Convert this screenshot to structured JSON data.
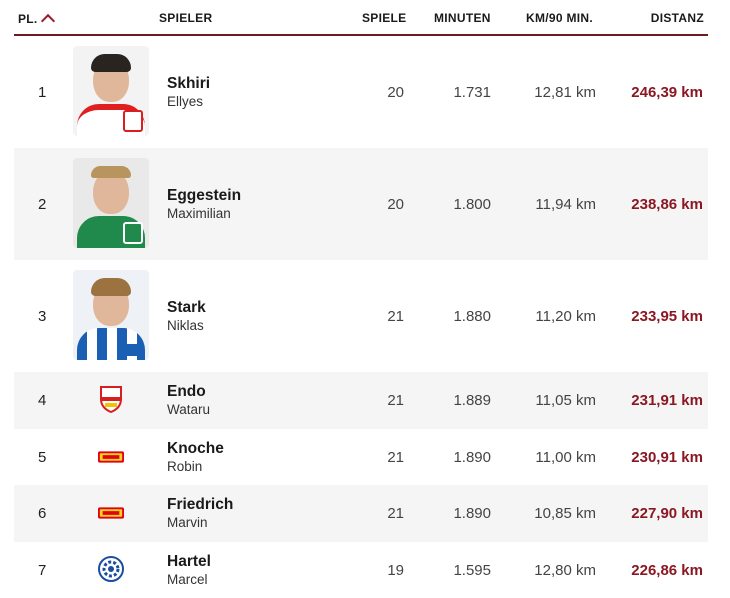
{
  "header": {
    "pl": "PL.",
    "spieler": "SPIELER",
    "spiele": "SPIELE",
    "minuten": "MINUTEN",
    "km90": "KM/90 MIN.",
    "distanz": "DISTANZ"
  },
  "rows": [
    {
      "rank": "1",
      "last": "Skhiri",
      "first": "Ellyes",
      "spiele": "20",
      "minuten": "1.731",
      "km90": "12,81 km",
      "distanz": "246,39 km",
      "club": "koeln-crest-icon"
    },
    {
      "rank": "2",
      "last": "Eggestein",
      "first": "Maximilian",
      "spiele": "20",
      "minuten": "1.800",
      "km90": "11,94 km",
      "distanz": "238,86 km",
      "club": "werder-crest-icon"
    },
    {
      "rank": "3",
      "last": "Stark",
      "first": "Niklas",
      "spiele": "21",
      "minuten": "1.880",
      "km90": "11,20 km",
      "distanz": "233,95 km",
      "club": "hertha-crest-icon"
    },
    {
      "rank": "4",
      "last": "Endo",
      "first": "Wataru",
      "spiele": "21",
      "minuten": "1.889",
      "km90": "11,05 km",
      "distanz": "231,91 km",
      "club": "vfb-crest-icon"
    },
    {
      "rank": "5",
      "last": "Knoche",
      "first": "Robin",
      "spiele": "21",
      "minuten": "1.890",
      "km90": "11,00 km",
      "distanz": "230,91 km",
      "club": "union-crest-icon"
    },
    {
      "rank": "6",
      "last": "Friedrich",
      "first": "Marvin",
      "spiele": "21",
      "minuten": "1.890",
      "km90": "10,85 km",
      "distanz": "227,90 km",
      "club": "union-crest-icon"
    },
    {
      "rank": "7",
      "last": "Hartel",
      "first": "Marcel",
      "spiele": "19",
      "minuten": "1.595",
      "km90": "12,80 km",
      "distanz": "226,86 km",
      "club": "bielefeld-crest-icon"
    }
  ],
  "colors": {
    "accent": "#8a1722",
    "header_rule": "#6e1a1f",
    "row_alt": "#f5f5f5"
  }
}
